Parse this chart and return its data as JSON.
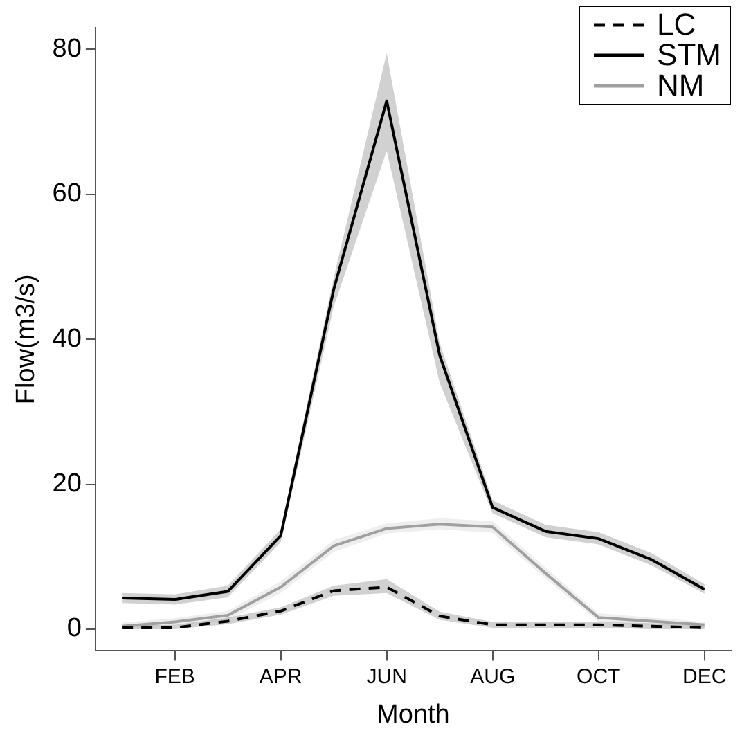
{
  "chart_data": {
    "type": "line",
    "xlabel": "Month",
    "ylabel": "Flow(m3/s)",
    "categories": [
      null,
      "FEB",
      null,
      "APR",
      null,
      "JUN",
      null,
      "AUG",
      null,
      "OCT",
      null,
      "DEC"
    ],
    "ylim": [
      -3,
      83
    ],
    "yticks": [
      0,
      20,
      40,
      60,
      80
    ],
    "grid": false,
    "legend": "top right",
    "marker": "none",
    "series": [
      {
        "name": "LC",
        "color": "#000000",
        "line_style": "dashed",
        "values": [
          0.2,
          0.2,
          1.1,
          2.5,
          5.3,
          5.8,
          1.8,
          0.6,
          0.6,
          0.6,
          0.4,
          0.2
        ],
        "lower": [
          0.0,
          0.0,
          0.7,
          2.0,
          4.6,
          5.0,
          1.3,
          0.2,
          0.2,
          0.2,
          0.0,
          0.0
        ],
        "upper": [
          0.6,
          0.6,
          1.6,
          3.0,
          6.0,
          6.9,
          2.4,
          1.0,
          1.0,
          1.0,
          0.8,
          0.6
        ]
      },
      {
        "name": "STM",
        "color": "#000000",
        "line_style": "solid",
        "values": [
          4.3,
          4.1,
          5.2,
          12.9,
          46.9,
          72.9,
          37.8,
          16.8,
          13.5,
          12.5,
          9.6,
          5.5
        ],
        "lower": [
          3.6,
          3.4,
          4.4,
          12.0,
          44.5,
          66,
          34,
          16,
          12.7,
          11.7,
          8.8,
          4.9
        ],
        "upper": [
          5.0,
          4.8,
          6.0,
          13.8,
          48.5,
          79.5,
          39.5,
          17.8,
          14.4,
          13.4,
          10.5,
          6.2
        ]
      },
      {
        "name": "NM",
        "color": "#a0a0a0",
        "line_style": "solid",
        "values": [
          0.4,
          1.0,
          1.9,
          5.8,
          11.5,
          13.9,
          14.5,
          14.1,
          7.7,
          1.6,
          1.1,
          0.6
        ],
        "lower": [
          0.0,
          0.5,
          1.3,
          5.0,
          10.7,
          13.2,
          13.8,
          13.3,
          7.0,
          1.0,
          0.6,
          0.2
        ],
        "upper": [
          0.9,
          1.5,
          2.5,
          6.6,
          12.3,
          14.6,
          15.3,
          14.9,
          8.5,
          2.2,
          1.6,
          1.0
        ]
      }
    ]
  }
}
